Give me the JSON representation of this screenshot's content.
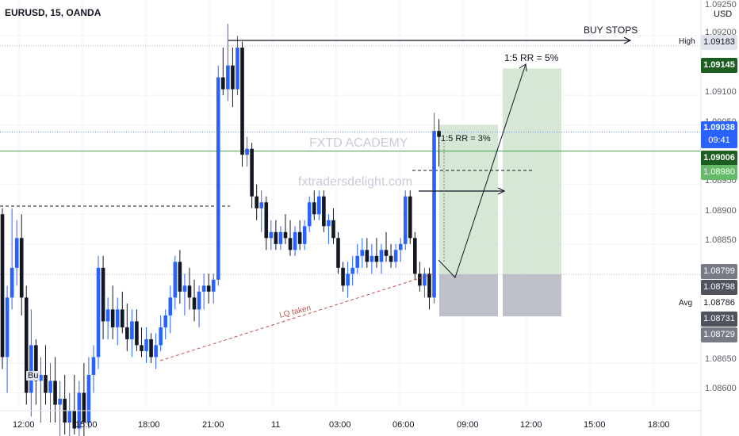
{
  "header": {
    "symbol_label": "EURUSD, 15, OANDA"
  },
  "watermark": {
    "line1": "FXTD ACADEMY",
    "line2": "fxtradersdelight.com"
  },
  "annotations": {
    "buy_stops": "BUY STOPS",
    "rr5": "1:5 RR = 5%",
    "rr3": "1:5 RR = 3%",
    "lq_taken": "LQ taken",
    "buy_label": "Bu"
  },
  "price_scale": {
    "currency": "USD",
    "ticks": [
      "1.09250",
      "1.09200",
      "1.09100",
      "1.09050",
      "1.08950",
      "1.08900",
      "1.08850",
      "1.08650",
      "1.08600"
    ],
    "high_tag": "High",
    "high_value": "1.09183",
    "avg_tag": "Avg",
    "avg_value": "1.08786",
    "current_price": "1.09038",
    "countdown": "09:41",
    "tp_price": "1.09145",
    "green_line_price": "1.09006",
    "entry_price": "1.08980",
    "stop_price_1": "1.08799",
    "stop_price_2": "1.08798",
    "low_price_1": "1.08731",
    "low_price_2": "1.08729"
  },
  "time_axis": {
    "ticks": [
      "12:00",
      "15:00",
      "18:00",
      "21:00",
      "11",
      "03:00",
      "06:00",
      "09:00",
      "12:00",
      "15:00",
      "18:00"
    ]
  },
  "colors": {
    "bull": "#2962ff",
    "bear": "#131722",
    "profit_zone": "#cfe3cf",
    "loss_zone": "#b2b5be",
    "green_line": "#43a047",
    "current_line": "#2962ff",
    "lq_line": "#c0504d"
  },
  "chart_data": {
    "type": "candlestick",
    "instrument": "EURUSD",
    "timeframe": "15",
    "source": "OANDA",
    "ylim": [
      1.0857,
      1.0926
    ],
    "levels": {
      "buy_stops": 1.09183,
      "take_profit": 1.09145,
      "current": 1.09038,
      "green_line": 1.09006,
      "entry": 1.0898,
      "stop": 1.08799,
      "avg": 1.08786
    },
    "candles": [
      {
        "o": 1.089,
        "h": 1.0891,
        "l": 1.0864,
        "c": 1.0866
      },
      {
        "o": 1.0866,
        "h": 1.0878,
        "l": 1.086,
        "c": 1.0876
      },
      {
        "o": 1.0876,
        "h": 1.0891,
        "l": 1.0874,
        "c": 1.0881
      },
      {
        "o": 1.0881,
        "h": 1.0889,
        "l": 1.0878,
        "c": 1.0886
      },
      {
        "o": 1.0886,
        "h": 1.089,
        "l": 1.0873,
        "c": 1.0876
      },
      {
        "o": 1.0876,
        "h": 1.0878,
        "l": 1.0858,
        "c": 1.086
      },
      {
        "o": 1.086,
        "h": 1.0874,
        "l": 1.0856,
        "c": 1.0868
      },
      {
        "o": 1.0868,
        "h": 1.0869,
        "l": 1.0858,
        "c": 1.0862
      },
      {
        "o": 1.0862,
        "h": 1.0866,
        "l": 1.0855,
        "c": 1.0863
      },
      {
        "o": 1.0863,
        "h": 1.0868,
        "l": 1.0858,
        "c": 1.086
      },
      {
        "o": 1.086,
        "h": 1.0865,
        "l": 1.0855,
        "c": 1.0862
      },
      {
        "o": 1.0862,
        "h": 1.0866,
        "l": 1.0855,
        "c": 1.0858
      },
      {
        "o": 1.0858,
        "h": 1.0862,
        "l": 1.0852,
        "c": 1.0859
      },
      {
        "o": 1.0859,
        "h": 1.0863,
        "l": 1.0853,
        "c": 1.0855
      },
      {
        "o": 1.0855,
        "h": 1.086,
        "l": 1.0852,
        "c": 1.0857
      },
      {
        "o": 1.0857,
        "h": 1.0863,
        "l": 1.0853,
        "c": 1.0854
      },
      {
        "o": 1.0854,
        "h": 1.0862,
        "l": 1.085,
        "c": 1.086
      },
      {
        "o": 1.086,
        "h": 1.0865,
        "l": 1.0852,
        "c": 1.0855
      },
      {
        "o": 1.0855,
        "h": 1.0866,
        "l": 1.0854,
        "c": 1.0863
      },
      {
        "o": 1.0863,
        "h": 1.0868,
        "l": 1.086,
        "c": 1.0866
      },
      {
        "o": 1.0866,
        "h": 1.0883,
        "l": 1.0864,
        "c": 1.0881
      },
      {
        "o": 1.0881,
        "h": 1.0883,
        "l": 1.0869,
        "c": 1.0872
      },
      {
        "o": 1.0872,
        "h": 1.0876,
        "l": 1.0869,
        "c": 1.0874
      },
      {
        "o": 1.0874,
        "h": 1.0878,
        "l": 1.0869,
        "c": 1.0871
      },
      {
        "o": 1.0871,
        "h": 1.0876,
        "l": 1.0868,
        "c": 1.0874
      },
      {
        "o": 1.0874,
        "h": 1.0877,
        "l": 1.087,
        "c": 1.0871
      },
      {
        "o": 1.0871,
        "h": 1.0875,
        "l": 1.0867,
        "c": 1.0869
      },
      {
        "o": 1.0869,
        "h": 1.0874,
        "l": 1.0866,
        "c": 1.0872
      },
      {
        "o": 1.0872,
        "h": 1.0874,
        "l": 1.0867,
        "c": 1.0868
      },
      {
        "o": 1.0868,
        "h": 1.0871,
        "l": 1.0866,
        "c": 1.0867
      },
      {
        "o": 1.0867,
        "h": 1.0871,
        "l": 1.0865,
        "c": 1.0869
      },
      {
        "o": 1.0869,
        "h": 1.087,
        "l": 1.0865,
        "c": 1.0866
      },
      {
        "o": 1.0866,
        "h": 1.087,
        "l": 1.0864,
        "c": 1.0868
      },
      {
        "o": 1.0868,
        "h": 1.0873,
        "l": 1.0867,
        "c": 1.0871
      },
      {
        "o": 1.0871,
        "h": 1.0874,
        "l": 1.0869,
        "c": 1.0873
      },
      {
        "o": 1.0873,
        "h": 1.0878,
        "l": 1.087,
        "c": 1.0876
      },
      {
        "o": 1.0876,
        "h": 1.0883,
        "l": 1.0874,
        "c": 1.0882
      },
      {
        "o": 1.0882,
        "h": 1.0884,
        "l": 1.0875,
        "c": 1.0877
      },
      {
        "o": 1.0877,
        "h": 1.088,
        "l": 1.0873,
        "c": 1.0878
      },
      {
        "o": 1.0878,
        "h": 1.0881,
        "l": 1.0874,
        "c": 1.0876
      },
      {
        "o": 1.0876,
        "h": 1.0879,
        "l": 1.0872,
        "c": 1.0874
      },
      {
        "o": 1.0874,
        "h": 1.0878,
        "l": 1.0871,
        "c": 1.0877
      },
      {
        "o": 1.0877,
        "h": 1.088,
        "l": 1.0874,
        "c": 1.0878
      },
      {
        "o": 1.0878,
        "h": 1.088,
        "l": 1.0875,
        "c": 1.0877
      },
      {
        "o": 1.0877,
        "h": 1.088,
        "l": 1.0875,
        "c": 1.0879
      },
      {
        "o": 1.0879,
        "h": 1.0915,
        "l": 1.0878,
        "c": 1.0913
      },
      {
        "o": 1.0913,
        "h": 1.0918,
        "l": 1.091,
        "c": 1.0911
      },
      {
        "o": 1.0911,
        "h": 1.0922,
        "l": 1.0909,
        "c": 1.0915
      },
      {
        "o": 1.0915,
        "h": 1.0918,
        "l": 1.0908,
        "c": 1.0911
      },
      {
        "o": 1.0911,
        "h": 1.092,
        "l": 1.091,
        "c": 1.0918
      },
      {
        "o": 1.0918,
        "h": 1.0919,
        "l": 1.0898,
        "c": 1.09
      },
      {
        "o": 1.09,
        "h": 1.0903,
        "l": 1.0898,
        "c": 1.0901
      },
      {
        "o": 1.0901,
        "h": 1.0902,
        "l": 1.0891,
        "c": 1.0893
      },
      {
        "o": 1.0893,
        "h": 1.0895,
        "l": 1.0889,
        "c": 1.0891
      },
      {
        "o": 1.0891,
        "h": 1.0894,
        "l": 1.0887,
        "c": 1.0892
      },
      {
        "o": 1.0892,
        "h": 1.0893,
        "l": 1.0884,
        "c": 1.0886
      },
      {
        "o": 1.0886,
        "h": 1.0889,
        "l": 1.0884,
        "c": 1.0887
      },
      {
        "o": 1.0887,
        "h": 1.0889,
        "l": 1.0884,
        "c": 1.0885
      },
      {
        "o": 1.0885,
        "h": 1.0888,
        "l": 1.0884,
        "c": 1.0887
      },
      {
        "o": 1.0887,
        "h": 1.089,
        "l": 1.0885,
        "c": 1.0886
      },
      {
        "o": 1.0886,
        "h": 1.0889,
        "l": 1.0883,
        "c": 1.0884
      },
      {
        "o": 1.0884,
        "h": 1.0888,
        "l": 1.0883,
        "c": 1.0887
      },
      {
        "o": 1.0887,
        "h": 1.0889,
        "l": 1.0884,
        "c": 1.0885
      },
      {
        "o": 1.0885,
        "h": 1.0889,
        "l": 1.0884,
        "c": 1.0888
      },
      {
        "o": 1.0888,
        "h": 1.0893,
        "l": 1.0887,
        "c": 1.0892
      },
      {
        "o": 1.0892,
        "h": 1.0894,
        "l": 1.0889,
        "c": 1.089
      },
      {
        "o": 1.089,
        "h": 1.0894,
        "l": 1.0889,
        "c": 1.0893
      },
      {
        "o": 1.0893,
        "h": 1.0894,
        "l": 1.0887,
        "c": 1.0888
      },
      {
        "o": 1.0888,
        "h": 1.089,
        "l": 1.0885,
        "c": 1.0889
      },
      {
        "o": 1.0889,
        "h": 1.0891,
        "l": 1.0885,
        "c": 1.0886
      },
      {
        "o": 1.0886,
        "h": 1.0887,
        "l": 1.088,
        "c": 1.0881
      },
      {
        "o": 1.0881,
        "h": 1.0882,
        "l": 1.0877,
        "c": 1.0878
      },
      {
        "o": 1.0878,
        "h": 1.0882,
        "l": 1.0876,
        "c": 1.088
      },
      {
        "o": 1.088,
        "h": 1.0883,
        "l": 1.0878,
        "c": 1.0881
      },
      {
        "o": 1.0881,
        "h": 1.0885,
        "l": 1.088,
        "c": 1.0883
      },
      {
        "o": 1.0883,
        "h": 1.0886,
        "l": 1.0881,
        "c": 1.0884
      },
      {
        "o": 1.0884,
        "h": 1.0886,
        "l": 1.0881,
        "c": 1.0882
      },
      {
        "o": 1.0882,
        "h": 1.0885,
        "l": 1.088,
        "c": 1.0883
      },
      {
        "o": 1.0883,
        "h": 1.0886,
        "l": 1.0881,
        "c": 1.0882
      },
      {
        "o": 1.0882,
        "h": 1.0885,
        "l": 1.088,
        "c": 1.0884
      },
      {
        "o": 1.0884,
        "h": 1.0887,
        "l": 1.0882,
        "c": 1.0883
      },
      {
        "o": 1.0883,
        "h": 1.0885,
        "l": 1.0881,
        "c": 1.0882
      },
      {
        "o": 1.0882,
        "h": 1.0885,
        "l": 1.0881,
        "c": 1.0884
      },
      {
        "o": 1.0884,
        "h": 1.0886,
        "l": 1.0882,
        "c": 1.0885
      },
      {
        "o": 1.0885,
        "h": 1.0894,
        "l": 1.0884,
        "c": 1.0893
      },
      {
        "o": 1.0893,
        "h": 1.0894,
        "l": 1.0885,
        "c": 1.0886
      },
      {
        "o": 1.0886,
        "h": 1.0887,
        "l": 1.0879,
        "c": 1.088
      },
      {
        "o": 1.088,
        "h": 1.0882,
        "l": 1.0877,
        "c": 1.0878
      },
      {
        "o": 1.0878,
        "h": 1.0881,
        "l": 1.0876,
        "c": 1.088
      },
      {
        "o": 1.088,
        "h": 1.0881,
        "l": 1.0874,
        "c": 1.0876
      },
      {
        "o": 1.0876,
        "h": 1.0907,
        "l": 1.0875,
        "c": 1.0904
      },
      {
        "o": 1.0904,
        "h": 1.0906,
        "l": 1.0898,
        "c": 1.0903
      }
    ]
  }
}
